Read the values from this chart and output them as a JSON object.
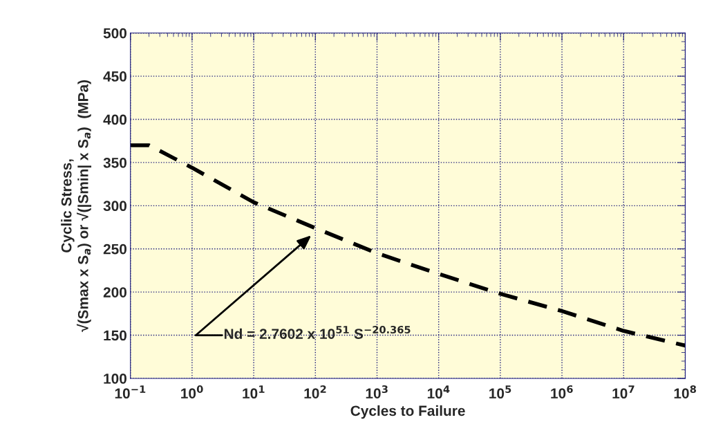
{
  "chart_data": {
    "type": "line",
    "xlabel": "Cycles to Failure",
    "ylabel": "Cyclic Stress,\n√(Smax x S$_{a}$) or √(|Smin| x S$_{a}$)  (MPa)",
    "log": "x",
    "x": [
      0.1,
      0.2,
      1,
      10,
      100,
      1000,
      10000,
      100000,
      1000000,
      10000000,
      100000000
    ],
    "series": [
      {
        "color": "#000000",
        "values": [
          370,
          370,
          344,
          304,
          274,
          245,
          221,
          198,
          178,
          155,
          138
        ]
      }
    ],
    "line_style": "dashed",
    "marker": "none",
    "xlim": [
      0.1,
      100000000
    ],
    "xticks": [
      {
        "value": 0.1,
        "label": "10$^{−1}$"
      },
      {
        "value": 1,
        "label": "10$^{0}$"
      },
      {
        "value": 10,
        "label": "10$^{1}$"
      },
      {
        "value": 100,
        "label": "10$^{2}$"
      },
      {
        "value": 1000,
        "label": "10$^{3}$"
      },
      {
        "value": 10000,
        "label": "10$^{4}$"
      },
      {
        "value": 100000,
        "label": "10$^{5}$"
      },
      {
        "value": 1000000,
        "label": "10$^{6}$"
      },
      {
        "value": 10000000,
        "label": "10$^{7}$"
      },
      {
        "value": 100000000,
        "label": "10$^{8}$"
      }
    ],
    "ylim": [
      100,
      500
    ],
    "yticks": [
      100,
      150,
      200,
      250,
      300,
      350,
      400,
      450,
      500
    ],
    "grid": true,
    "annotations": [
      "Nd = 2.7602 x 10$^{51}$ S$^{−20.365}$"
    ]
  }
}
